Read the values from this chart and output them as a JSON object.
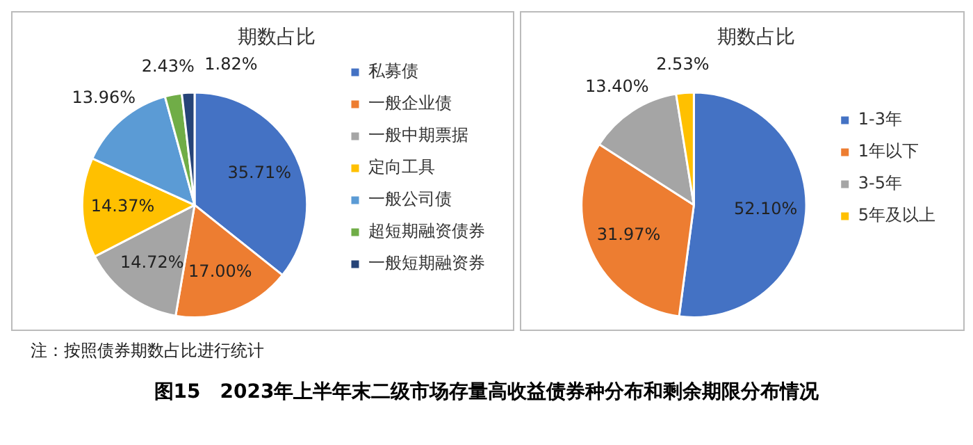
{
  "chart_data": [
    {
      "type": "pie",
      "title": "期数占比",
      "categories": [
        "私募债",
        "一般企业债",
        "一般中期票据",
        "定向工具",
        "一般公司债",
        "超短期融资债券",
        "一般短期融资券"
      ],
      "values": [
        35.71,
        17.0,
        14.72,
        14.37,
        13.96,
        2.43,
        1.82
      ],
      "value_labels": [
        "35.71%",
        "17.00%",
        "14.72%",
        "14.37%",
        "13.96%",
        "2.43%",
        "1.82%"
      ],
      "colors": [
        "#4472c4",
        "#ed7d31",
        "#a5a5a5",
        "#ffc000",
        "#5b9bd5",
        "#70ad47",
        "#264478"
      ],
      "legend": "right"
    },
    {
      "type": "pie",
      "title": "期数占比",
      "categories": [
        "1-3年",
        "1年以下",
        "3-5年",
        "5年及以上"
      ],
      "values": [
        52.1,
        31.97,
        13.4,
        2.53
      ],
      "value_labels": [
        "52.10%",
        "31.97%",
        "13.40%",
        "2.53%"
      ],
      "colors": [
        "#4472c4",
        "#ed7d31",
        "#a5a5a5",
        "#ffc000"
      ],
      "legend": "right"
    },
    {
      "type": "other",
      "title": "图15　2023年上半年末二级市场存量高收益债券种分布和剩余期限分布情况",
      "annotations": [
        "注：按照债券期数占比进行统计"
      ]
    }
  ]
}
